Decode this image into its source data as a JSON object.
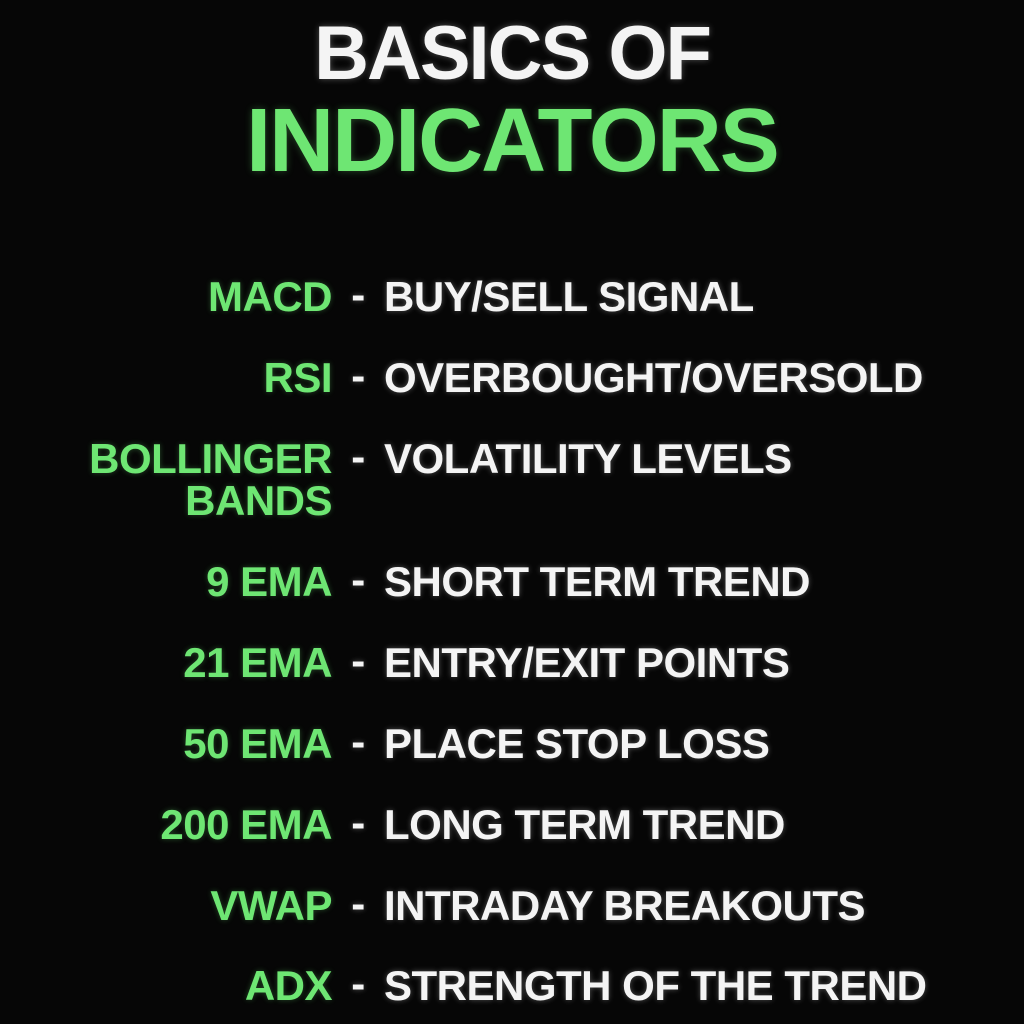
{
  "title": {
    "line1": "BASICS OF",
    "line2": "INDICATORS"
  },
  "separator": "-",
  "rows": [
    {
      "label": "MACD",
      "description": "BUY/SELL SIGNAL"
    },
    {
      "label": "RSI",
      "description": "OVERBOUGHT/OVERSOLD"
    },
    {
      "label": "BOLLINGER",
      "label2": "BANDS",
      "description": "VOLATILITY LEVELS"
    },
    {
      "label": "9 EMA",
      "description": "SHORT TERM TREND"
    },
    {
      "label": "21 EMA",
      "description": "ENTRY/EXIT POINTS"
    },
    {
      "label": "50 EMA",
      "description": "PLACE STOP LOSS"
    },
    {
      "label": "200 EMA",
      "description": "LONG TERM TREND"
    },
    {
      "label": "VWAP",
      "description": "INTRADAY BREAKOUTS"
    },
    {
      "label": "ADX",
      "description": "STRENGTH OF THE TREND"
    }
  ],
  "colors": {
    "background": "#060606",
    "accent_green": "#6ee673",
    "text_white": "#f4f4f4"
  }
}
